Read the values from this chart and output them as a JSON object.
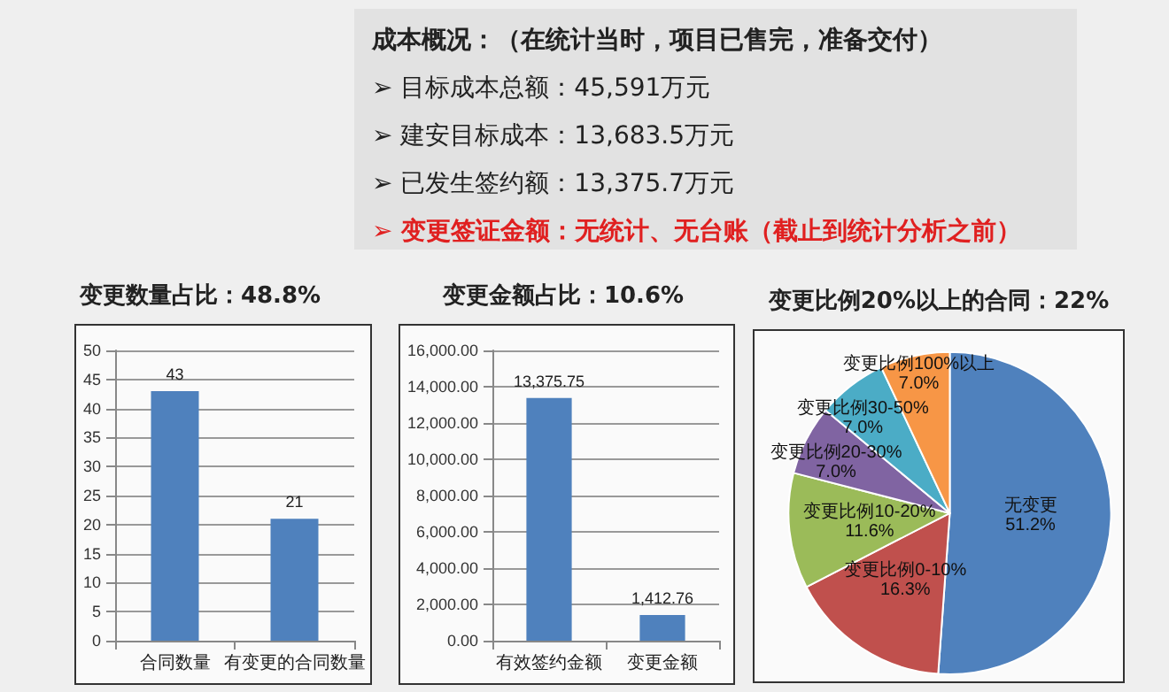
{
  "chart_data": [
    {
      "type": "other",
      "title": "成本概况：（在统计当时，项目已售完，准备交付）",
      "annotations": [
        "➢ 目标成本总额：45,591万元",
        "➢ 建安目标成本：13,683.5万元",
        "➢ 已发生签约额：13,375.7万元",
        "➢ 变更签证金额：无统计、无台账（截止到统计分析之前）"
      ]
    },
    {
      "type": "bar",
      "title": "变更数量占比：48.8%",
      "categories": [
        "合同数量",
        "有变更的合同数量"
      ],
      "values": [
        43,
        21
      ],
      "color": "#4f81bd",
      "ylim": [
        0,
        50
      ],
      "yticks": [
        0,
        5,
        10,
        15,
        20,
        25,
        30,
        35,
        40,
        45,
        50
      ],
      "grid": "y",
      "data_labels": true
    },
    {
      "type": "bar",
      "title": "变更金额占比：10.6%",
      "categories": [
        "有效签约金额",
        "变更金额"
      ],
      "values": [
        13375.75,
        1412.76
      ],
      "value_labels": [
        "13,375.75",
        "1,412.76"
      ],
      "color": "#4f81bd",
      "ylim": [
        0,
        16000
      ],
      "yticks": [
        {
          "value": 0,
          "label": "0.00"
        },
        {
          "value": 2000,
          "label": "2,000.00"
        },
        {
          "value": 4000,
          "label": "4,000.00"
        },
        {
          "value": 6000,
          "label": "6,000.00"
        },
        {
          "value": 8000,
          "label": "8,000.00"
        },
        {
          "value": 10000,
          "label": "10,000.00"
        },
        {
          "value": 12000,
          "label": "12,000.00"
        },
        {
          "value": 14000,
          "label": "14,000.00"
        },
        {
          "value": 16000,
          "label": "16,000.00"
        }
      ],
      "grid": "y"
    },
    {
      "type": "pie",
      "title": "变更比例20%以上的合同：22%",
      "categories": [
        "无变更",
        "变更比例0-10%",
        "变更比例10-20%",
        "变更比例20-30%",
        "变更比例30-50%",
        "变更比例100%以上"
      ],
      "values": [
        51.2,
        16.3,
        11.6,
        7.0,
        7.0,
        7.0
      ],
      "value_labels": [
        "51.2%",
        "16.3%",
        "11.6%",
        "7.0%",
        "7.0%",
        "7.0%"
      ],
      "colors": [
        "#4f81bd",
        "#c0504d",
        "#9bbb59",
        "#8064a2",
        "#4bacc6",
        "#f79646"
      ]
    }
  ]
}
